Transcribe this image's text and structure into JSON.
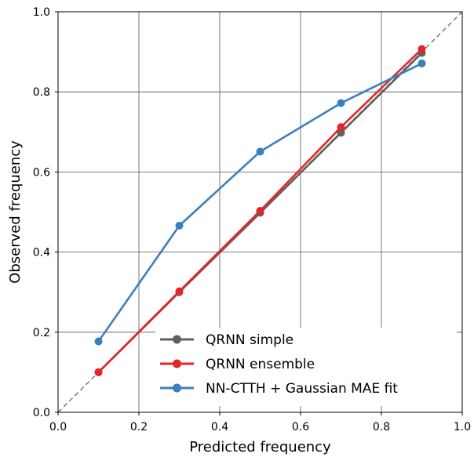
{
  "chart_data": {
    "type": "line",
    "xlabel": "Predicted frequency",
    "ylabel": "Observed frequency",
    "xlim": [
      0.0,
      1.0
    ],
    "ylim": [
      0.0,
      1.0
    ],
    "xticks": [
      "0.0",
      "0.2",
      "0.4",
      "0.6",
      "0.8",
      "1.0"
    ],
    "yticks": [
      "0.0",
      "0.2",
      "0.4",
      "0.6",
      "0.8",
      "1.0"
    ],
    "grid": true,
    "legend_position": "bottom-right",
    "reference_line": {
      "style": "dashed",
      "color": "#808080",
      "points": [
        [
          0.0,
          0.0
        ],
        [
          1.0,
          1.0
        ]
      ]
    },
    "series": [
      {
        "name": "QRNN simple",
        "color": "#606060",
        "x": [
          0.1,
          0.3,
          0.5,
          0.7,
          0.9
        ],
        "y": [
          0.1,
          0.3,
          0.498,
          0.698,
          0.897
        ]
      },
      {
        "name": "QRNN ensemble",
        "color": "#e3262a",
        "x": [
          0.1,
          0.3,
          0.5,
          0.7,
          0.9
        ],
        "y": [
          0.1,
          0.302,
          0.503,
          0.712,
          0.907
        ]
      },
      {
        "name": "NN-CTTH + Gaussian MAE fit",
        "color": "#3a7fbf",
        "x": [
          0.1,
          0.3,
          0.5,
          0.7,
          0.9
        ],
        "y": [
          0.177,
          0.466,
          0.651,
          0.772,
          0.871
        ]
      }
    ]
  }
}
